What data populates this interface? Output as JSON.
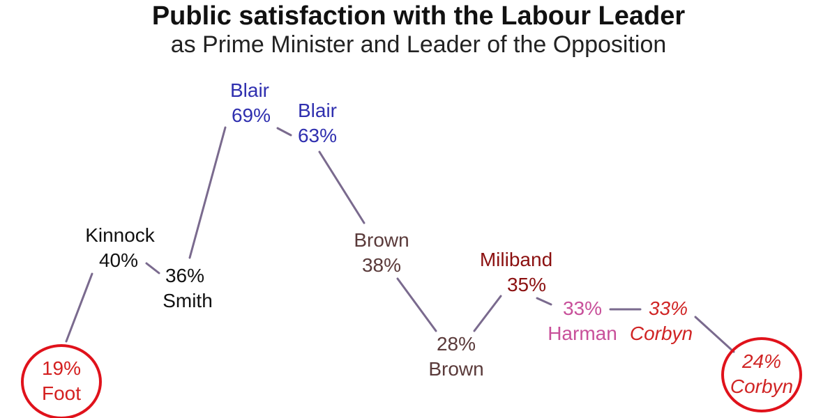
{
  "title": "Public satisfaction with the Labour Leader",
  "subtitle": "as Prime Minister and Leader of the Opposition",
  "colors": {
    "line": "#7a6a8e",
    "circle": "#e0121b",
    "Foot": "#d42020",
    "Kinnock": "#111111",
    "Smith": "#111111",
    "Blair": "#2f2faf",
    "Brown": "#5a3a3a",
    "Miliband": "#8b1010",
    "Harman": "#c8509a",
    "Corbyn": "#d02424"
  },
  "chart_data": {
    "type": "line",
    "title": "Public satisfaction with the Labour Leader",
    "subtitle": "as Prime Minister and Leader of the Opposition",
    "unit": "%",
    "points": [
      {
        "leader": "Foot",
        "value": 19,
        "value_label": "19%",
        "circled": true
      },
      {
        "leader": "Kinnock",
        "value": 40,
        "value_label": "40%"
      },
      {
        "leader": "Smith",
        "value": 36,
        "value_label": "36%"
      },
      {
        "leader": "Blair",
        "value": 69,
        "value_label": "69%"
      },
      {
        "leader": "Blair",
        "value": 63,
        "value_label": "63%"
      },
      {
        "leader": "Brown",
        "value": 38,
        "value_label": "38%"
      },
      {
        "leader": "Brown",
        "value": 28,
        "value_label": "28%"
      },
      {
        "leader": "Miliband",
        "value": 35,
        "value_label": "35%"
      },
      {
        "leader": "Harman",
        "value": 33,
        "value_label": "33%"
      },
      {
        "leader": "Corbyn",
        "value": 33,
        "value_label": "33%",
        "italic": true
      },
      {
        "leader": "Corbyn",
        "value": 24,
        "value_label": "24%",
        "italic": true,
        "circled": true
      }
    ]
  }
}
